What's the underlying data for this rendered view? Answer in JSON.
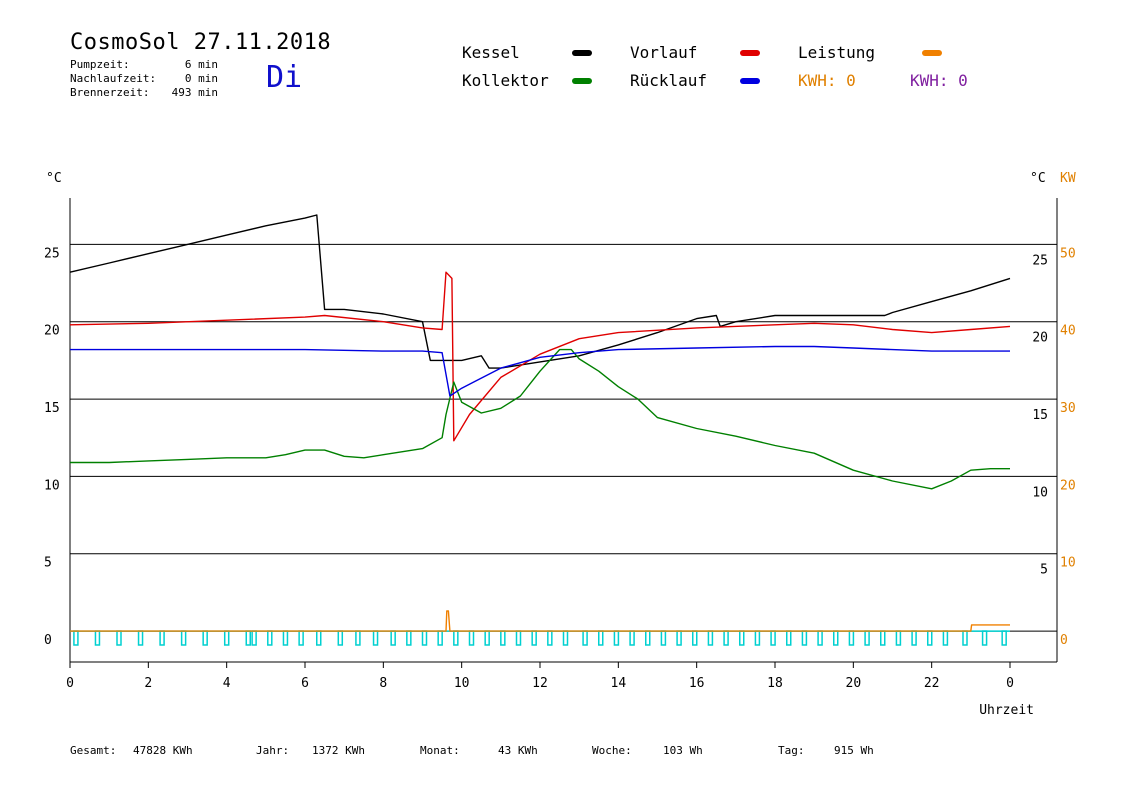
{
  "header": {
    "title": "CosmoSol 27.11.2018",
    "day": "Di",
    "stats": [
      {
        "label": "Pumpzeit:",
        "value": "6 min"
      },
      {
        "label": "Nachlaufzeit:",
        "value": "0 min"
      },
      {
        "label": "Brennerzeit:",
        "value": "493 min"
      }
    ]
  },
  "legend": {
    "kessel": {
      "label": "Kessel",
      "color": "#000000"
    },
    "vorlauf": {
      "label": "Vorlauf",
      "color": "#e00000"
    },
    "leistung": {
      "label": "Leistung",
      "color": "#f08000"
    },
    "kollektor": {
      "label": "Kollektor",
      "color": "#008000"
    },
    "ruecklauf": {
      "label": "Rücklauf",
      "color": "#0000e0"
    },
    "kwh1": {
      "label": "KWH: 0",
      "color": "#e08000"
    },
    "kwh2": {
      "label": "KWH: 0",
      "color": "#8020a0"
    }
  },
  "footer": {
    "gesamt_label": "Gesamt:",
    "gesamt_value": "47828 KWh",
    "jahr_label": "Jahr:",
    "jahr_value": "1372 KWh",
    "monat_label": "Monat:",
    "monat_value": "43 KWh",
    "woche_label": "Woche:",
    "woche_value": "103 Wh",
    "tag_label": "Tag:",
    "tag_value": "915 Wh"
  },
  "chart_data": {
    "type": "line",
    "xlabel": "Uhrzeit",
    "x_ticks": [
      "0",
      "2",
      "4",
      "6",
      "8",
      "10",
      "12",
      "14",
      "16",
      "18",
      "20",
      "22",
      "0"
    ],
    "xlim": [
      0,
      24
    ],
    "left_axis": {
      "unit": "°C",
      "ylim": [
        -2,
        28
      ],
      "ticks": [
        0,
        5,
        10,
        15,
        20,
        25
      ]
    },
    "right_axis_temp": {
      "unit": "°C",
      "ticks": [
        5,
        10,
        15,
        20,
        25
      ]
    },
    "right_axis_kw": {
      "unit": "KW",
      "color": "#e08000",
      "ticks": [
        0,
        10,
        20,
        30,
        40,
        50
      ]
    },
    "grid_lines_y": [
      0,
      5,
      10,
      15,
      20,
      25
    ],
    "series": [
      {
        "name": "Kessel",
        "color": "#000000",
        "x": [
          0,
          1,
          2,
          3,
          4,
          5,
          6,
          6.3,
          6.5,
          7,
          8,
          9,
          9.2,
          9.3,
          10,
          10.5,
          10.7,
          11,
          12,
          13,
          14,
          15,
          16,
          16.5,
          16.6,
          17,
          18,
          19,
          20,
          20.8,
          21,
          22,
          23,
          24
        ],
        "y": [
          23.2,
          23.8,
          24.4,
          25.0,
          25.6,
          26.2,
          26.7,
          26.9,
          20.8,
          20.8,
          20.5,
          20.0,
          17.5,
          17.5,
          17.5,
          17.8,
          17.0,
          17.0,
          17.4,
          17.8,
          18.5,
          19.3,
          20.2,
          20.4,
          19.7,
          20.0,
          20.4,
          20.4,
          20.4,
          20.4,
          20.6,
          21.3,
          22.0,
          22.8
        ]
      },
      {
        "name": "Vorlauf",
        "color": "#e00000",
        "x": [
          0,
          2,
          4,
          6,
          6.5,
          8,
          9,
          9.5,
          9.6,
          9.75,
          9.8,
          10.2,
          11,
          12,
          13,
          14,
          16,
          18,
          19,
          20,
          21,
          22,
          23,
          24
        ],
        "y": [
          19.8,
          19.9,
          20.1,
          20.3,
          20.4,
          20.0,
          19.6,
          19.5,
          23.2,
          22.8,
          12.3,
          14.0,
          16.4,
          17.9,
          18.9,
          19.3,
          19.6,
          19.8,
          19.9,
          19.8,
          19.5,
          19.3,
          19.5,
          19.7
        ]
      },
      {
        "name": "Kollektor",
        "color": "#008000",
        "x": [
          0,
          1,
          2,
          3,
          4,
          5,
          5.5,
          6,
          6.5,
          7,
          7.5,
          8,
          9,
          9.5,
          9.6,
          9.8,
          10,
          10.5,
          11,
          11.5,
          12,
          12.5,
          12.8,
          13,
          13.5,
          14,
          14.5,
          15,
          16,
          17,
          18,
          19,
          20,
          21,
          22,
          22.5,
          23,
          23.5,
          24
        ],
        "y": [
          10.9,
          10.9,
          11.0,
          11.1,
          11.2,
          11.2,
          11.4,
          11.7,
          11.7,
          11.3,
          11.2,
          11.4,
          11.8,
          12.5,
          14.0,
          16.1,
          14.8,
          14.1,
          14.4,
          15.2,
          16.8,
          18.2,
          18.2,
          17.6,
          16.8,
          15.8,
          15.0,
          13.8,
          13.1,
          12.6,
          12.0,
          11.5,
          10.4,
          9.7,
          9.2,
          9.7,
          10.4,
          10.5,
          10.5
        ]
      },
      {
        "name": "Rücklauf",
        "color": "#0000e0",
        "x": [
          0,
          2,
          4,
          6,
          8,
          9,
          9.5,
          9.7,
          10,
          11,
          12,
          13,
          14,
          16,
          18,
          19,
          20,
          21,
          22,
          23,
          24
        ],
        "y": [
          18.2,
          18.2,
          18.2,
          18.2,
          18.1,
          18.1,
          18.0,
          15.2,
          15.7,
          17.0,
          17.7,
          18.0,
          18.2,
          18.3,
          18.4,
          18.4,
          18.3,
          18.2,
          18.1,
          18.1,
          18.1
        ]
      },
      {
        "name": "Leistung",
        "color": "#f08000",
        "x": [
          0,
          9.6,
          9.62,
          9.66,
          9.7,
          23,
          23.02,
          24
        ],
        "y": [
          0,
          0,
          1.3,
          1.3,
          0,
          0,
          0.4,
          0.4
        ]
      }
    ],
    "pump": {
      "color": "#00d0d0",
      "pulses_x": [
        0.1,
        0.65,
        1.2,
        1.75,
        2.3,
        2.85,
        3.4,
        3.95,
        4.5,
        4.65,
        5.05,
        5.45,
        5.85,
        6.3,
        6.85,
        7.3,
        7.75,
        8.2,
        8.6,
        9.0,
        9.4,
        9.8,
        10.2,
        10.6,
        11.0,
        11.4,
        11.8,
        12.2,
        12.6,
        13.1,
        13.5,
        13.9,
        14.3,
        14.7,
        15.1,
        15.5,
        15.9,
        16.3,
        16.7,
        17.1,
        17.5,
        17.9,
        18.3,
        18.7,
        19.1,
        19.5,
        19.9,
        20.3,
        20.7,
        21.1,
        21.5,
        21.9,
        22.3,
        22.8,
        23.3,
        23.8
      ]
    }
  }
}
